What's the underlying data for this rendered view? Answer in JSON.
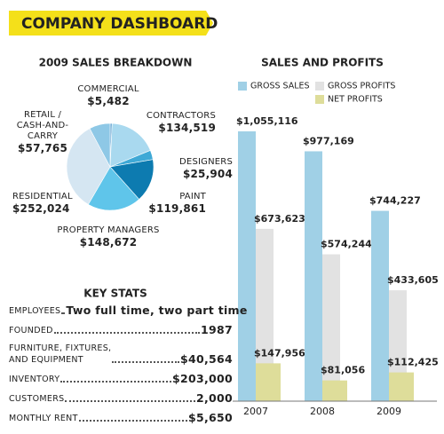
{
  "header": {
    "title": "COMPANY DASHBOARD"
  },
  "chart_data": [
    {
      "type": "pie",
      "title": "2009 SALES BREAKDOWN",
      "categories": [
        "COMMERCIAL",
        "CONTRACTORS",
        "DESIGNERS",
        "PAINT",
        "PROPERTY MANAGERS",
        "RESIDENTIAL",
        "RETAIL /\nCASH-AND-\nCARRY"
      ],
      "values": [
        5482,
        134519,
        25904,
        119861,
        148672,
        252024,
        57765
      ],
      "value_labels": [
        "$5,482",
        "$134,519",
        "$25,904",
        "$119,861",
        "$148,672",
        "$252,024",
        "$57,765"
      ],
      "colors": [
        "#5a9fcf",
        "#a9d9ef",
        "#3fa9d6",
        "#0d7bb0",
        "#5fc5ea",
        "#d5e6f2",
        "#8ec8e6"
      ]
    },
    {
      "type": "bar",
      "title": "SALES AND PROFITS",
      "categories": [
        "2007",
        "2008",
        "2009"
      ],
      "series": [
        {
          "name": "GROSS SALES",
          "color": "#a0d0e6",
          "values": [
            1055116,
            977169,
            744227
          ],
          "value_labels": [
            "$1,055,116",
            "$977,169",
            "$744,227"
          ]
        },
        {
          "name": "GROSS PROFITS",
          "color": "#e2e2e2",
          "values": [
            673623,
            574244,
            433605
          ],
          "value_labels": [
            "$673,623",
            "$574,244",
            "$433,605"
          ]
        },
        {
          "name": "NET PROFITS",
          "color": "#dedd9a",
          "values": [
            147956,
            81056,
            112425
          ],
          "value_labels": [
            "$147,956",
            "$81,056",
            "$112,425"
          ]
        }
      ]
    }
  ],
  "key_stats": {
    "title": "KEY STATS",
    "rows": [
      {
        "label": "EMPLOYEES",
        "value": "Two full time, two part time"
      },
      {
        "label": "FOUNDED",
        "value": "1987"
      },
      {
        "label": "FURNITURE, FIXTURES,\nAND EQUIPMENT",
        "value": "$40,564"
      },
      {
        "label": "INVENTORY",
        "value": "$203,000"
      },
      {
        "label": "CUSTOMERS",
        "value": "2,000"
      },
      {
        "label": "MONTHLY RENT",
        "value": "$5,650"
      }
    ]
  }
}
